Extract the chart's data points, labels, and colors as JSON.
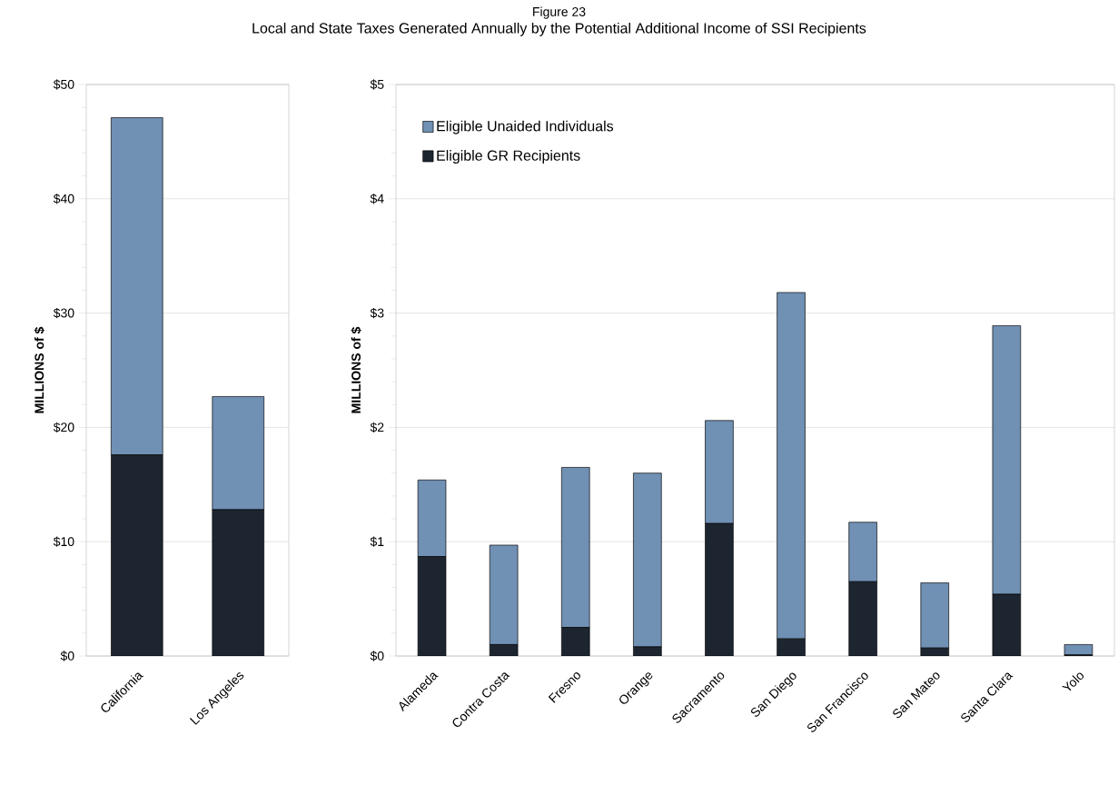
{
  "chart_data": [
    {
      "type": "bar",
      "ylabel": "MILLIONS of $",
      "stacked": true,
      "grid": "y",
      "categories": [
        "California",
        "Los Angeles"
      ],
      "series": [
        {
          "color": "#1c2530",
          "values": [
            17.6,
            12.8
          ]
        },
        {
          "color": "#7090b4",
          "values": [
            29.5,
            9.9
          ]
        }
      ],
      "ylim": [
        0,
        50
      ],
      "yticks": [
        {
          "value": 0,
          "label": "$0"
        },
        {
          "value": 10,
          "label": "$10"
        },
        {
          "value": 20,
          "label": "$20"
        },
        {
          "value": 30,
          "label": "$30"
        },
        {
          "value": 40,
          "label": "$40"
        },
        {
          "value": 50,
          "label": "$50"
        }
      ]
    },
    {
      "type": "bar",
      "title": "Figure 23",
      "subtitle": "Local and State Taxes Generated Annually by the Potential Additional Income of SSI Recipients",
      "ylabel": "MILLIONS of $",
      "stacked": true,
      "grid": "y",
      "legend": "top left",
      "categories": [
        "Alameda",
        "Contra Costa",
        "Fresno",
        "Orange",
        "Sacramento",
        "San Diego",
        "San Francisco",
        "San Mateo",
        "Santa Clara",
        "Yolo"
      ],
      "series": [
        {
          "name": "Eligible GR Recipients",
          "color": "#1c2530",
          "values": [
            0.87,
            0.1,
            0.25,
            0.08,
            1.16,
            0.15,
            0.65,
            0.07,
            0.54,
            0.01
          ]
        },
        {
          "name": "Eligible Unaided Individuals",
          "color": "#7090b4",
          "values": [
            0.67,
            0.87,
            1.4,
            1.52,
            0.9,
            3.03,
            0.52,
            0.57,
            2.35,
            0.09
          ]
        }
      ],
      "ylim": [
        0,
        5
      ],
      "yticks": [
        {
          "value": 0,
          "label": "$0"
        },
        {
          "value": 1,
          "label": "$1"
        },
        {
          "value": 2,
          "label": "$2"
        },
        {
          "value": 3,
          "label": "$3"
        },
        {
          "value": 4,
          "label": "$4"
        },
        {
          "value": 5,
          "label": "$5"
        }
      ]
    }
  ]
}
